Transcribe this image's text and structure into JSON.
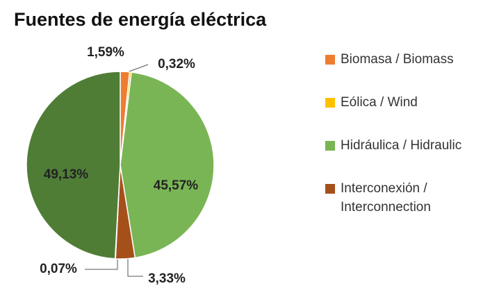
{
  "chart_data": {
    "type": "pie",
    "title": "Fuentes de energía eléctrica",
    "categories": [
      "Biomasa / Biomass",
      "Eólica / Wind",
      "Hidráulica / Hidraulic",
      "Interconexión / Interconnection",
      null,
      null
    ],
    "values": [
      1.59,
      0.32,
      45.57,
      3.33,
      0.07,
      49.13
    ],
    "value_labels": [
      "1,59%",
      "0,32%",
      "45,57%",
      "3,33%",
      "0,07%",
      "49,13%"
    ],
    "colors": [
      "#ed7d31",
      "#ffc000",
      "#7ab555",
      "#a5501b",
      "#8a8f6a",
      "#4f7d36"
    ]
  }
}
